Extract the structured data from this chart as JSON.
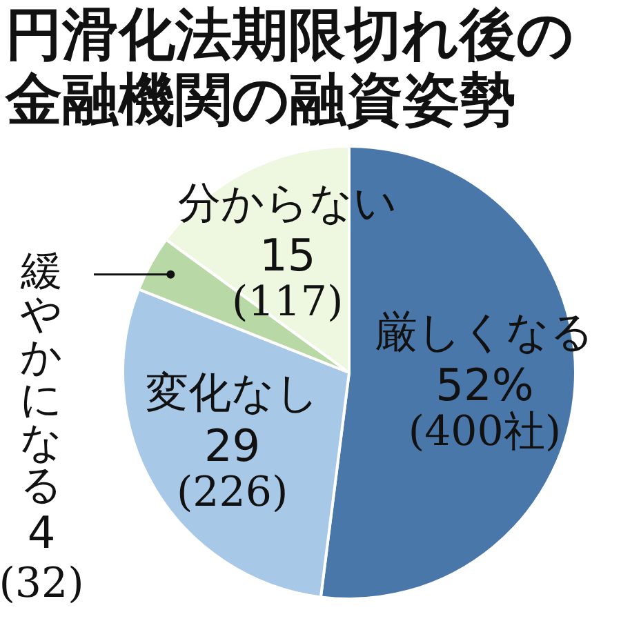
{
  "chart_data": {
    "type": "pie",
    "title": "円滑化法期限切れ後の金融機関の融資姿勢",
    "categories": [
      "厳しくなる",
      "変化なし",
      "緩やかになる",
      "分からない"
    ],
    "values": [
      52,
      29,
      4,
      15
    ],
    "colors": [
      "#4a77aa",
      "#a8c8e8",
      "#b8d9a5",
      "#eef7df"
    ],
    "value_labels": [
      "52%\n(400社)",
      "29\n(226)",
      "4\n(32)",
      "15\n(117)"
    ],
    "legend": false
  }
}
